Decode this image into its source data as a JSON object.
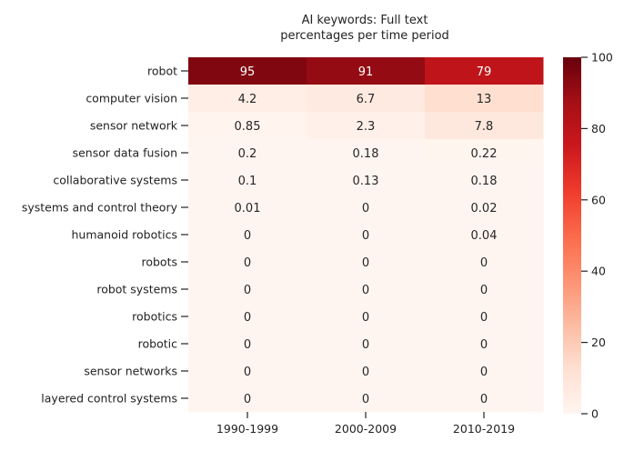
{
  "chart_data": {
    "type": "heatmap",
    "title": "AI keywords: Full text\npercentages per time period",
    "xlabel": "",
    "ylabel": "",
    "columns": [
      "1990-1999",
      "2000-2009",
      "2010-2019"
    ],
    "rows": [
      "robot",
      "computer vision",
      "sensor network",
      "sensor data fusion",
      "collaborative systems",
      "systems and control theory",
      "humanoid robotics",
      "robots",
      "robot systems",
      "robotics",
      "robotic",
      "sensor networks",
      "layered control systems"
    ],
    "values": [
      [
        95,
        91,
        79
      ],
      [
        4.2,
        6.7,
        13
      ],
      [
        0.85,
        2.3,
        7.8
      ],
      [
        0.2,
        0.18,
        0.22
      ],
      [
        0.1,
        0.13,
        0.18
      ],
      [
        0.01,
        0,
        0.02
      ],
      [
        0,
        0,
        0.04
      ],
      [
        0,
        0,
        0
      ],
      [
        0,
        0,
        0
      ],
      [
        0,
        0,
        0
      ],
      [
        0,
        0,
        0
      ],
      [
        0,
        0,
        0
      ],
      [
        0,
        0,
        0
      ]
    ],
    "colorscale": "Reds",
    "vmin": 0,
    "vmax": 100,
    "colorbar_ticks": [
      0,
      20,
      40,
      60,
      80,
      100
    ],
    "grid": false,
    "annotations": true
  }
}
